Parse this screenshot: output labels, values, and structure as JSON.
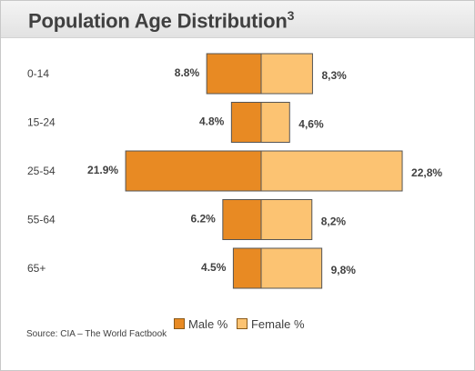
{
  "header": {
    "title": "Population Age Distribution",
    "title_sup": "3"
  },
  "source": "Source: CIA – The World Factbook",
  "colors": {
    "male": "#e88a23",
    "female": "#fcc372",
    "stroke": "#555555"
  },
  "chart_data": {
    "type": "bar",
    "orientation": "horizontal-diverging",
    "title": "Population Age Distribution",
    "categories": [
      "0-14",
      "15-24",
      "25-54",
      "55-64",
      "65+"
    ],
    "series": [
      {
        "name": "Male %",
        "values": [
          8.8,
          4.8,
          21.9,
          6.2,
          4.5
        ],
        "labels": [
          "8.8%",
          "4.8%",
          "21.9%",
          "6.2%",
          "4.5%"
        ],
        "direction": "left"
      },
      {
        "name": "Female %",
        "values": [
          8.3,
          4.6,
          22.8,
          8.2,
          9.8
        ],
        "labels": [
          "8,3%",
          "4,6%",
          "22,8%",
          "8,2%",
          "9,8%"
        ],
        "direction": "right"
      }
    ],
    "legend": "bottom",
    "grid": false,
    "axes_visible": false
  }
}
